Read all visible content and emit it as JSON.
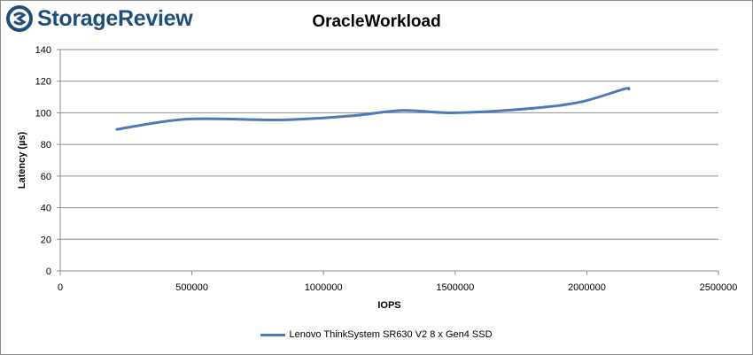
{
  "brand": {
    "name": "StorageReview",
    "icon": "storagereview-logo-icon"
  },
  "colors": {
    "series": "#4a7ab8",
    "grid": "#8c8c8c",
    "brand": "#1f4e79"
  },
  "chart_data": {
    "type": "line",
    "title": "OracleWorkload",
    "xlabel": "IOPS",
    "ylabel": "Latency (µs)",
    "xlim": [
      0,
      2500000
    ],
    "ylim": [
      0,
      140
    ],
    "xticks": [
      0,
      500000,
      1000000,
      1500000,
      2000000,
      2500000
    ],
    "yticks": [
      0,
      20,
      40,
      60,
      80,
      100,
      120,
      140
    ],
    "grid": true,
    "legend_position": "bottom",
    "series": [
      {
        "name": "Lenovo ThinkSystem SR630 V2 8 x Gen4 SSD",
        "x": [
          215000,
          480000,
          830000,
          1100000,
          1300000,
          1500000,
          1800000,
          1980000,
          2140000,
          2160000
        ],
        "y": [
          89.5,
          96,
          95.5,
          98,
          101.5,
          100,
          103,
          107,
          115,
          115
        ]
      }
    ]
  }
}
